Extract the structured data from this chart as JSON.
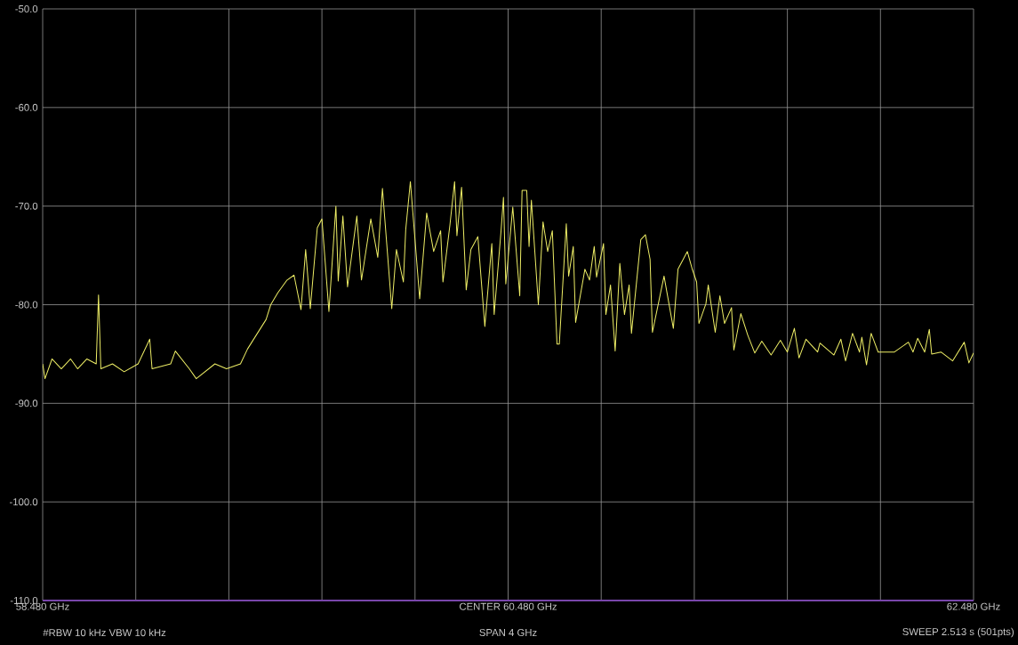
{
  "chart_data": {
    "type": "line",
    "grid": true,
    "xlim": [
      58.48,
      62.48
    ],
    "ylim": [
      -110,
      -50
    ],
    "xticks": [
      {
        "value": 58.48,
        "label": "58.480 GHz"
      },
      {
        "value": 58.88,
        "label": null
      },
      {
        "value": 59.28,
        "label": null
      },
      {
        "value": 59.68,
        "label": null
      },
      {
        "value": 60.08,
        "label": null
      },
      {
        "value": 60.48,
        "label": "CENTER 60.480 GHz"
      },
      {
        "value": 60.88,
        "label": null
      },
      {
        "value": 61.28,
        "label": null
      },
      {
        "value": 61.68,
        "label": null
      },
      {
        "value": 62.08,
        "label": null
      },
      {
        "value": 62.48,
        "label": "62.480 GHz"
      }
    ],
    "yticks": [
      {
        "value": -50,
        "label": "-50.0"
      },
      {
        "value": -60,
        "label": "-60.0"
      },
      {
        "value": -70,
        "label": "-70.0"
      },
      {
        "value": -80,
        "label": "-80.0"
      },
      {
        "value": -90,
        "label": "-90.0"
      },
      {
        "value": -100,
        "label": "-100.0"
      },
      {
        "value": -110,
        "label": "-110.0"
      }
    ],
    "annotations": [
      "#RBW 10 kHz    VBW 10 kHz",
      "SPAN 4 GHz",
      "SWEEP 2.513 s (501pts)"
    ],
    "series": [
      {
        "color": "#eeee66",
        "x": [
          58.48,
          58.49,
          58.52,
          58.56,
          58.6,
          58.63,
          58.67,
          58.71,
          58.72,
          58.73,
          58.78,
          58.83,
          58.89,
          58.94,
          58.95,
          59.03,
          59.05,
          59.11,
          59.14,
          59.22,
          59.27,
          59.33,
          59.36,
          59.4,
          59.44,
          59.46,
          59.49,
          59.53,
          59.56,
          59.59,
          59.61,
          59.63,
          59.66,
          59.68,
          59.71,
          59.74,
          59.75,
          59.77,
          59.79,
          59.83,
          59.85,
          59.89,
          59.92,
          59.94,
          59.98,
          60.0,
          60.03,
          60.04,
          60.06,
          60.1,
          60.13,
          60.16,
          60.19,
          60.2,
          60.23,
          60.25,
          60.26,
          60.28,
          60.3,
          60.32,
          60.35,
          60.38,
          60.41,
          60.42,
          60.45,
          60.46,
          60.47,
          60.5,
          60.53,
          60.54,
          60.56,
          60.57,
          60.58,
          60.61,
          60.63,
          60.65,
          60.67,
          60.69,
          60.7,
          60.73,
          60.74,
          60.76,
          60.77,
          60.81,
          60.83,
          60.85,
          60.86,
          60.89,
          60.9,
          60.92,
          60.94,
          60.96,
          60.98,
          61.0,
          61.01,
          61.05,
          61.07,
          61.09,
          61.1,
          61.15,
          61.19,
          61.21,
          61.25,
          61.27,
          61.29,
          61.3,
          61.33,
          61.34,
          61.37,
          61.39,
          61.41,
          61.44,
          61.45,
          61.48,
          61.51,
          61.54,
          61.57,
          61.61,
          61.65,
          61.68,
          61.71,
          61.73,
          61.76,
          61.81,
          61.82,
          61.88,
          61.91,
          61.93,
          61.96,
          61.99,
          62.0,
          62.02,
          62.04,
          62.07,
          62.14,
          62.2,
          62.22,
          62.24,
          62.27,
          62.29,
          62.3,
          62.34,
          62.39,
          62.44,
          62.46,
          62.48
        ],
        "values": [
          -86,
          -87.5,
          -85.5,
          -86.5,
          -85.5,
          -86.5,
          -85.5,
          -86,
          -79,
          -86.5,
          -86,
          -86.8,
          -86,
          -83.5,
          -86.5,
          -86,
          -84.7,
          -86.5,
          -87.5,
          -86,
          -86.5,
          -86,
          -84.5,
          -83,
          -81.5,
          -80,
          -78.8,
          -77.5,
          -77,
          -80.5,
          -74.4,
          -80.4,
          -72.2,
          -71.3,
          -80.7,
          -70,
          -77.6,
          -71,
          -78.2,
          -71,
          -77.5,
          -71.3,
          -75.2,
          -68.2,
          -80.4,
          -74.4,
          -77.7,
          -72.4,
          -67.5,
          -79.4,
          -70.7,
          -74.6,
          -72.5,
          -77.7,
          -71.9,
          -67.5,
          -73,
          -68.1,
          -78.5,
          -74.4,
          -73.1,
          -82.2,
          -73.8,
          -81,
          -72.4,
          -69.1,
          -77.9,
          -70.1,
          -79.1,
          -68.4,
          -68.4,
          -74.1,
          -69.4,
          -80,
          -71.6,
          -74.6,
          -72.5,
          -84,
          -84,
          -71.8,
          -77.1,
          -74.1,
          -81.8,
          -76.4,
          -77.5,
          -74.1,
          -77.2,
          -73.8,
          -81,
          -78,
          -84.7,
          -75.8,
          -81,
          -78,
          -82.9,
          -73.4,
          -72.9,
          -75.4,
          -82.8,
          -77.1,
          -82.4,
          -76.4,
          -74.6,
          -76.3,
          -77.7,
          -81.9,
          -79.9,
          -78,
          -82.8,
          -79.1,
          -81.9,
          -80.3,
          -84.6,
          -80.9,
          -83.1,
          -84.9,
          -83.7,
          -85.1,
          -83.6,
          -84.8,
          -82.4,
          -85.4,
          -83.5,
          -84.8,
          -83.9,
          -85.1,
          -83.5,
          -85.7,
          -82.9,
          -84.8,
          -83.3,
          -86.1,
          -82.9,
          -84.8,
          -84.8,
          -83.8,
          -84.8,
          -83.4,
          -84.8,
          -82.5,
          -85,
          -84.8,
          -85.7,
          -83.8,
          -85.9,
          -84.9
        ]
      }
    ]
  }
}
